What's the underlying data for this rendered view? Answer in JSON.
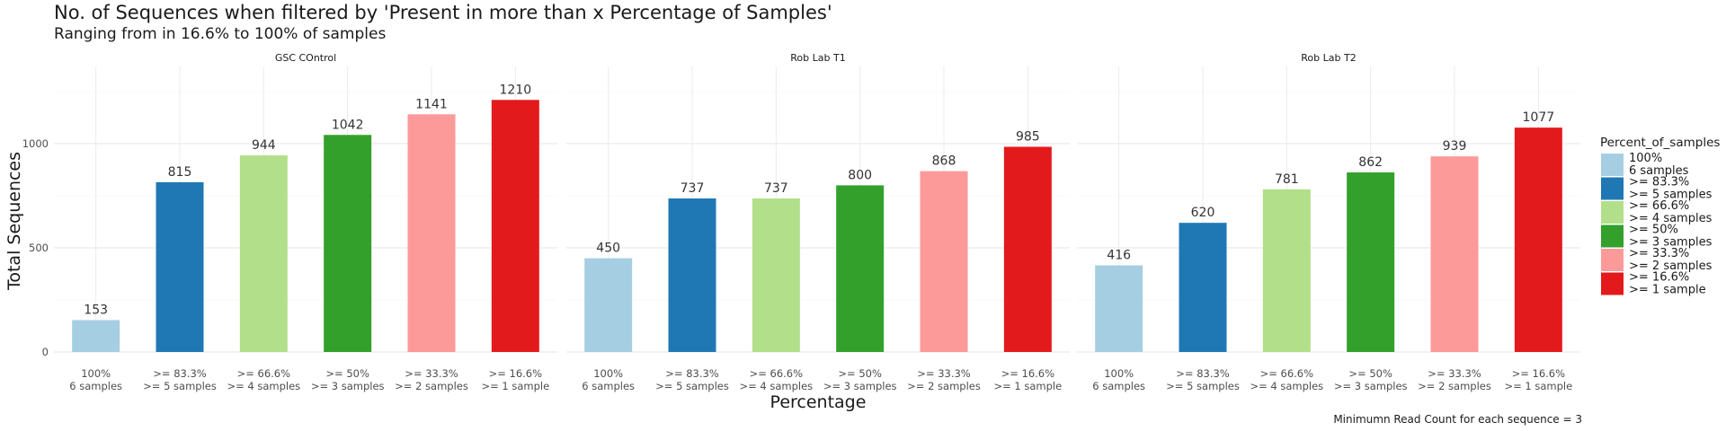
{
  "title": "No. of Sequences when filtered by 'Present in more than x Percentage of Samples'",
  "subtitle": "Ranging from in 16.6% to 100% of samples",
  "caption": "Minimumn Read Count for each sequence = 3",
  "chart_data": {
    "type": "bar",
    "xlabel": "Percentage",
    "ylabel": "Total Sequences",
    "ylim": [
      0,
      1300
    ],
    "yticks": [
      0,
      500,
      1000
    ],
    "grid": true,
    "legend_position": "right",
    "legend_title": "Percent_of_samples",
    "categories": [
      {
        "line1": "100%",
        "line2": "6 samples"
      },
      {
        "line1": ">= 83.3%",
        "line2": ">= 5 samples"
      },
      {
        "line1": ">= 66.6%",
        "line2": ">= 4 samples"
      },
      {
        "line1": ">= 50%",
        "line2": ">= 3 samples"
      },
      {
        "line1": ">= 33.3%",
        "line2": ">= 2 samples"
      },
      {
        "line1": ">= 16.6%",
        "line2": ">= 1 sample"
      }
    ],
    "colors": [
      "#a6cee3",
      "#1f78b4",
      "#b2df8a",
      "#33a02c",
      "#fb9a99",
      "#e31a1c"
    ],
    "panels": [
      {
        "name": "GSC COntrol",
        "values": [
          153,
          815,
          944,
          1042,
          1141,
          1210
        ]
      },
      {
        "name": "Rob Lab T1",
        "values": [
          450,
          737,
          737,
          800,
          868,
          985
        ]
      },
      {
        "name": "Rob Lab T2",
        "values": [
          416,
          620,
          781,
          862,
          939,
          1077
        ]
      }
    ]
  }
}
